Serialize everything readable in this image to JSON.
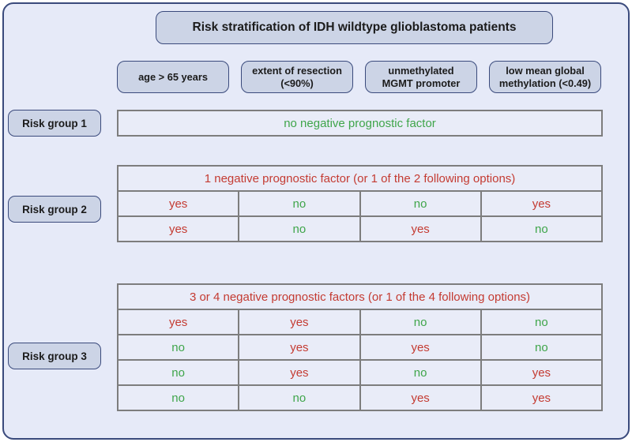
{
  "title": "Risk stratification of IDH wildtype glioblastoma patients",
  "columns": [
    "age > 65 years",
    "extent of resection\n(<90%)",
    "unmethylated\nMGMT promoter",
    "low mean global\nmethylation (<0.49)"
  ],
  "groups": [
    {
      "label": "Risk group 1",
      "summary": "no negative prognostic factor",
      "summary_color": "#3fa54a",
      "rows": []
    },
    {
      "label": "Risk group 2",
      "summary": "1 negative prognostic factor (or 1 of the 2 following options)",
      "summary_color": "#c43b32",
      "rows": [
        [
          "yes",
          "no",
          "no",
          "yes"
        ],
        [
          "yes",
          "no",
          "yes",
          "no"
        ]
      ]
    },
    {
      "label": "Risk group 3",
      "summary": "3 or 4 negative prognostic factors (or 1 of the 4 following options)",
      "summary_color": "#c43b32",
      "rows": [
        [
          "yes",
          "yes",
          "no",
          "no"
        ],
        [
          "no",
          "yes",
          "yes",
          "no"
        ],
        [
          "no",
          "yes",
          "no",
          "yes"
        ],
        [
          "no",
          "no",
          "yes",
          "yes"
        ]
      ]
    }
  ],
  "colors": {
    "yes": "#c43b32",
    "no": "#3fa54a",
    "frame_border": "#3a4a7c",
    "box_fill": "#ccd4e6",
    "page_fill": "#e6eaf8",
    "cell_fill": "#e9ecf8",
    "table_border": "#7d7d7d",
    "text_dark": "#1b1b1b"
  }
}
